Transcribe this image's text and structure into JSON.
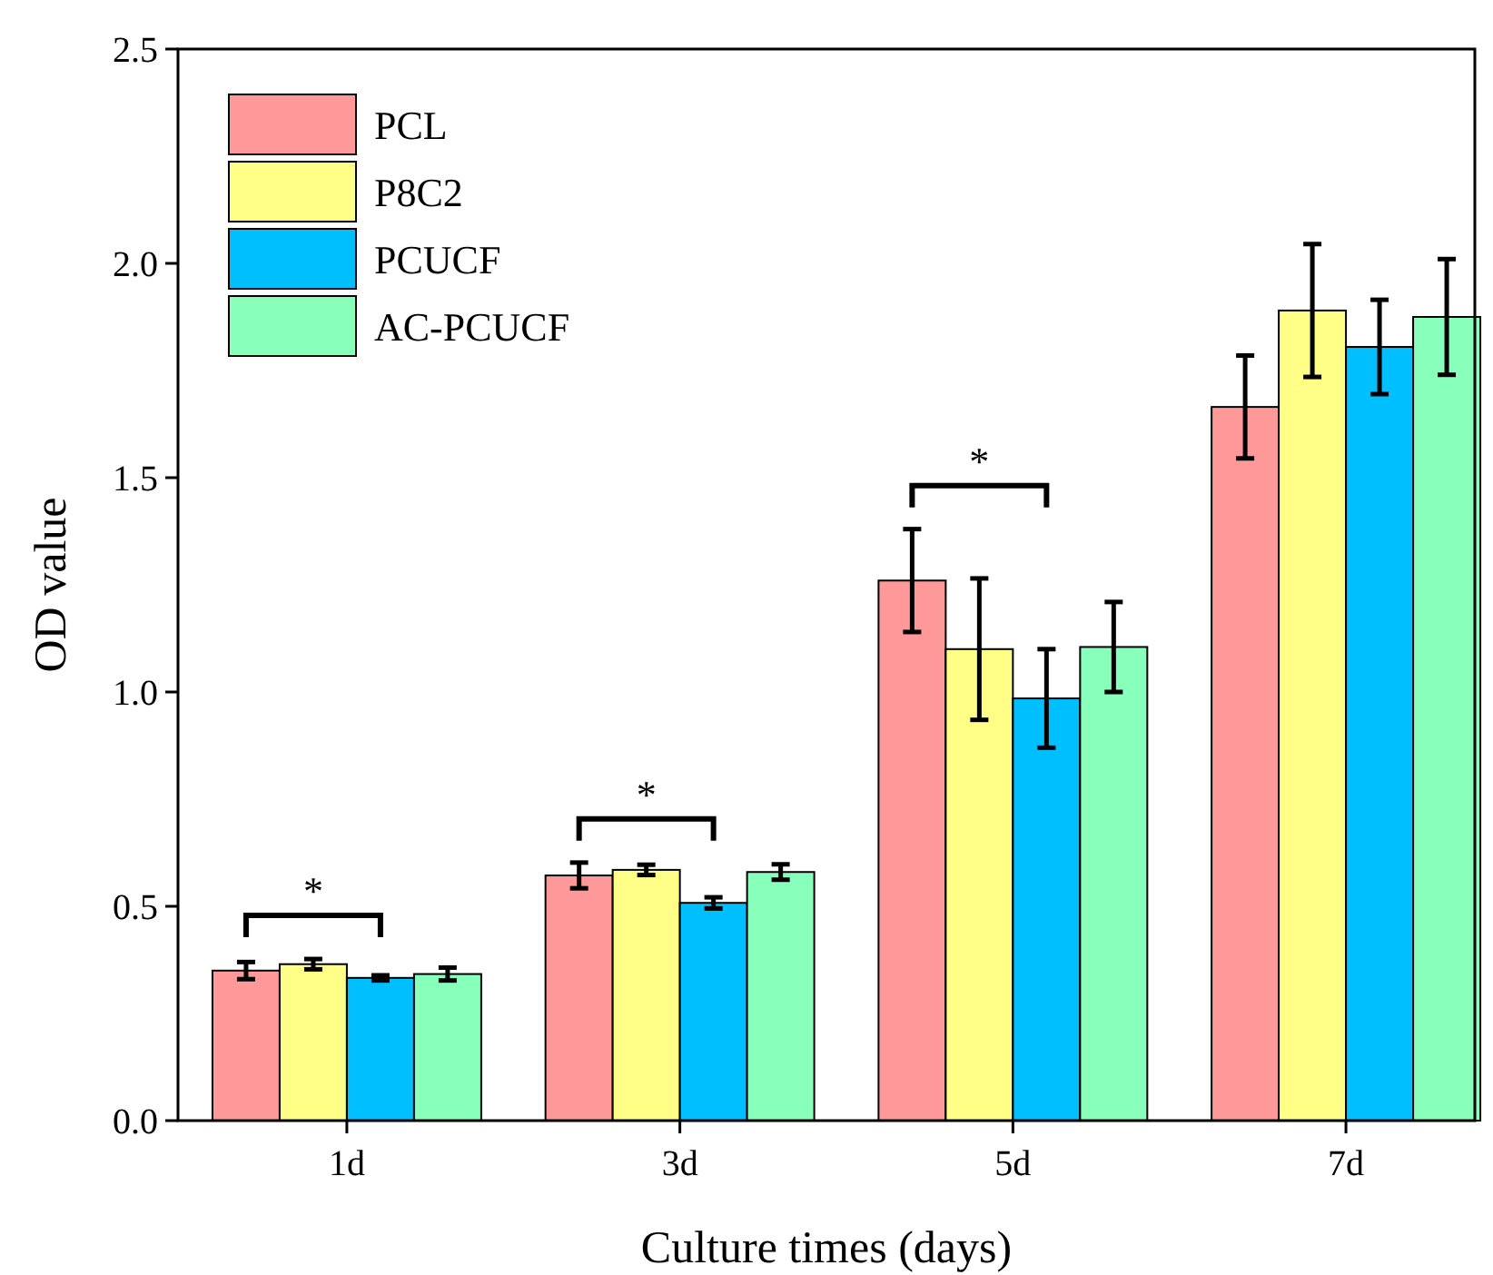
{
  "chart_data": {
    "type": "bar",
    "xlabel": "Culture times (days)",
    "ylabel": "OD value",
    "categories": [
      "1d",
      "3d",
      "5d",
      "7d"
    ],
    "series": [
      {
        "name": "PCL",
        "color": "#ff9999",
        "values": [
          0.35,
          0.572,
          1.26,
          1.665
        ],
        "errors": [
          0.02,
          0.03,
          0.12,
          0.12
        ]
      },
      {
        "name": "P8C2",
        "color": "#ffff88",
        "values": [
          0.365,
          0.585,
          1.1,
          1.89
        ],
        "errors": [
          0.012,
          0.012,
          0.165,
          0.155
        ]
      },
      {
        "name": "PCUCF",
        "color": "#00bfff",
        "values": [
          0.333,
          0.508,
          0.985,
          1.805
        ],
        "errors": [
          0.006,
          0.013,
          0.115,
          0.11
        ]
      },
      {
        "name": "AC-PCUCF",
        "color": "#88ffbb",
        "values": [
          0.342,
          0.58,
          1.105,
          1.875
        ],
        "errors": [
          0.015,
          0.018,
          0.105,
          0.135
        ]
      }
    ],
    "ylim": [
      0,
      2.5
    ],
    "yticks": [
      {
        "value": 0,
        "label": "0.0"
      },
      0.5,
      {
        "value": 1,
        "label": "1.0"
      },
      1.5,
      {
        "value": 2,
        "label": "2.0"
      },
      2.5
    ],
    "annotations": [
      "*",
      "*",
      "*"
    ],
    "legend": "top left",
    "grid": false
  }
}
